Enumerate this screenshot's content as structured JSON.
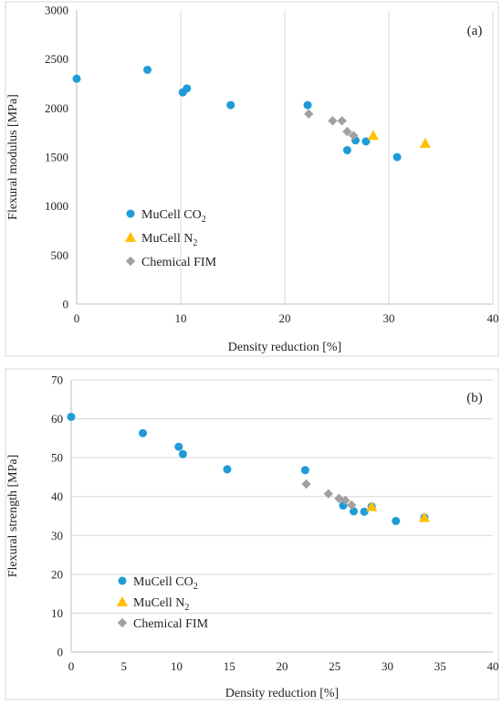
{
  "chart_data": [
    {
      "type": "scatter",
      "panel_label": "(a)",
      "xlabel": "Density reduction [%]",
      "ylabel": "Flexural modulus [MPa]",
      "xlim": [
        0,
        40
      ],
      "ylim": [
        0,
        3000
      ],
      "xticks": [
        0,
        10,
        20,
        30,
        40
      ],
      "yticks": [
        0,
        500,
        1000,
        1500,
        2000,
        2500,
        3000
      ],
      "grid": "vertical",
      "legend_position": "left-center",
      "series": [
        {
          "name": "MuCell CO2",
          "legend_label": "MuCell CO",
          "legend_sub": "2",
          "marker": "circle",
          "color": "#1f9bd7",
          "points": [
            [
              0,
              2300
            ],
            [
              6.8,
              2390
            ],
            [
              10.2,
              2160
            ],
            [
              10.6,
              2200
            ],
            [
              14.8,
              2030
            ],
            [
              22.2,
              2030
            ],
            [
              26.0,
              1570
            ],
            [
              26.8,
              1670
            ],
            [
              27.8,
              1660
            ],
            [
              30.8,
              1500
            ]
          ]
        },
        {
          "name": "MuCell N2",
          "legend_label": "MuCell N",
          "legend_sub": "2",
          "marker": "triangle",
          "color": "#ffc000",
          "points": [
            [
              28.5,
              1720
            ],
            [
              33.5,
              1640
            ]
          ]
        },
        {
          "name": "Chemical FIM",
          "legend_label": "Chemical FIM",
          "legend_sub": "",
          "marker": "diamond",
          "color": "#a0a0a0",
          "points": [
            [
              22.3,
              1940
            ],
            [
              24.6,
              1870
            ],
            [
              25.5,
              1870
            ],
            [
              26.0,
              1760
            ],
            [
              26.6,
              1720
            ]
          ]
        }
      ]
    },
    {
      "type": "scatter",
      "panel_label": "(b)",
      "xlabel": "Density reduction [%]",
      "ylabel": "Flexural strength [MPa]",
      "xlim": [
        0,
        40
      ],
      "ylim": [
        0,
        70
      ],
      "xticks": [
        0,
        5,
        10,
        15,
        20,
        25,
        30,
        35,
        40
      ],
      "yticks": [
        0,
        10,
        20,
        30,
        40,
        50,
        60,
        70
      ],
      "grid": "horizontal",
      "legend_position": "left-bottom",
      "series": [
        {
          "name": "MuCell CO2",
          "legend_label": "MuCell CO",
          "legend_sub": "2",
          "marker": "circle",
          "color": "#1f9bd7",
          "points": [
            [
              0,
              60.5
            ],
            [
              6.8,
              56.3
            ],
            [
              10.2,
              52.8
            ],
            [
              10.6,
              50.9
            ],
            [
              14.8,
              47.0
            ],
            [
              22.2,
              46.8
            ],
            [
              25.8,
              37.7
            ],
            [
              26.8,
              36.2
            ],
            [
              27.8,
              36.1
            ],
            [
              28.5,
              37.4
            ],
            [
              30.8,
              33.7
            ],
            [
              33.5,
              34.6
            ]
          ]
        },
        {
          "name": "MuCell N2",
          "legend_label": "MuCell N",
          "legend_sub": "2",
          "marker": "triangle",
          "color": "#ffc000",
          "points": [
            [
              28.5,
              37.4
            ],
            [
              33.5,
              34.6
            ]
          ]
        },
        {
          "name": "Chemical FIM",
          "legend_label": "Chemical FIM",
          "legend_sub": "",
          "marker": "diamond",
          "color": "#a0a0a0",
          "points": [
            [
              22.3,
              43.2
            ],
            [
              24.4,
              40.7
            ],
            [
              25.4,
              39.5
            ],
            [
              26.0,
              39.0
            ],
            [
              26.6,
              37.8
            ]
          ]
        }
      ]
    }
  ]
}
